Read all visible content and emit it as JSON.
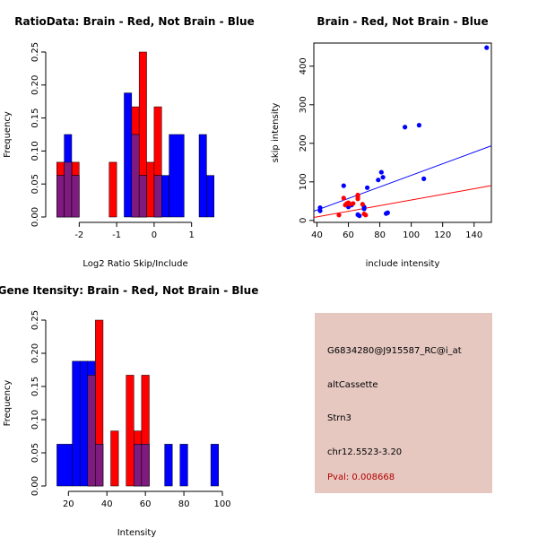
{
  "colors": {
    "red": "#ff0000",
    "blue": "#0000ff",
    "overlap": "#7f1a7f",
    "info_bg": "#e6c8c1",
    "pval": "#b40000"
  },
  "chart_data": [
    {
      "type": "histogram",
      "title": "RatioData: Brain - Red, Not Brain - Blue",
      "xlabel": "Log2 Ratio Skip/Include",
      "ylabel": "Frequency",
      "xlim": [
        -2.75,
        1.75
      ],
      "ylim": [
        0,
        0.25
      ],
      "xticks": [
        -2,
        -1,
        0,
        1
      ],
      "yticks": [
        0.0,
        0.05,
        0.1,
        0.15,
        0.2,
        0.25
      ],
      "series": [
        {
          "name": "Brain",
          "color": "red",
          "bins": [
            {
              "x0": -2.6,
              "x1": -2.2,
              "y": 0.083
            },
            {
              "x0": -2.2,
              "x1": -2.0,
              "y": 0.083
            },
            {
              "x0": -1.2,
              "x1": -1.0,
              "y": 0.083
            },
            {
              "x0": -0.6,
              "x1": -0.4,
              "y": 0.167
            },
            {
              "x0": -0.4,
              "x1": -0.2,
              "y": 0.25
            },
            {
              "x0": -0.2,
              "x1": 0.0,
              "y": 0.083
            },
            {
              "x0": 0.0,
              "x1": 0.2,
              "y": 0.167
            }
          ]
        },
        {
          "name": "Not Brain",
          "color": "blue",
          "bins": [
            {
              "x0": -2.6,
              "x1": -2.4,
              "y": 0.063
            },
            {
              "x0": -2.4,
              "x1": -2.2,
              "y": 0.125
            },
            {
              "x0": -2.2,
              "x1": -2.0,
              "y": 0.063
            },
            {
              "x0": -0.8,
              "x1": -0.6,
              "y": 0.188
            },
            {
              "x0": -0.6,
              "x1": -0.4,
              "y": 0.125
            },
            {
              "x0": -0.4,
              "x1": -0.2,
              "y": 0.063
            },
            {
              "x0": 0.0,
              "x1": 0.2,
              "y": 0.063
            },
            {
              "x0": 0.2,
              "x1": 0.4,
              "y": 0.063
            },
            {
              "x0": 0.4,
              "x1": 0.8,
              "y": 0.125
            },
            {
              "x0": 1.0,
              "x1": 1.2,
              "y": 0.0
            },
            {
              "x0": 1.2,
              "x1": 1.4,
              "y": 0.125
            },
            {
              "x0": 1.4,
              "x1": 1.6,
              "y": 0.063
            }
          ]
        }
      ]
    },
    {
      "type": "scatter",
      "title": "Brain - Red, Not Brain - Blue",
      "xlabel": "include intensity",
      "ylabel": "skip intensity",
      "xlim": [
        38,
        151
      ],
      "ylim": [
        -5,
        460
      ],
      "xticks": [
        40,
        60,
        80,
        100,
        120,
        140
      ],
      "yticks": [
        0,
        100,
        200,
        300,
        400
      ],
      "series": [
        {
          "name": "Not Brain",
          "color": "blue",
          "points": [
            [
              42,
              33
            ],
            [
              42,
              25
            ],
            [
              57,
              90
            ],
            [
              60,
              35
            ],
            [
              62,
              40
            ],
            [
              66,
              15
            ],
            [
              67,
              12
            ],
            [
              70,
              35
            ],
            [
              70,
              30
            ],
            [
              72,
              85
            ],
            [
              79,
              105
            ],
            [
              81,
              125
            ],
            [
              82,
              112
            ],
            [
              84,
              18
            ],
            [
              85,
              20
            ],
            [
              96,
              242
            ],
            [
              105,
              247
            ],
            [
              108,
              108
            ],
            [
              148,
              448
            ]
          ]
        },
        {
          "name": "Brain",
          "color": "red",
          "points": [
            [
              54,
              14
            ],
            [
              57,
              58
            ],
            [
              58,
              40
            ],
            [
              59,
              44
            ],
            [
              60,
              46
            ],
            [
              61,
              42
            ],
            [
              63,
              44
            ],
            [
              66,
              62
            ],
            [
              66,
              66
            ],
            [
              66,
              56
            ],
            [
              69,
              42
            ],
            [
              70,
              17
            ],
            [
              71,
              14
            ]
          ]
        }
      ],
      "lines": [
        {
          "color": "blue",
          "intercept": -33,
          "slope": 1.5
        },
        {
          "color": "red",
          "intercept": -20,
          "slope": 0.73
        }
      ]
    },
    {
      "type": "histogram",
      "title": "Gene Itensity: Brain - Red, Not Brain - Blue",
      "xlabel": "Intensity",
      "ylabel": "Frequency",
      "xlim": [
        11,
        100
      ],
      "ylim": [
        0,
        0.25
      ],
      "xticks": [
        20,
        40,
        60,
        80,
        100
      ],
      "yticks": [
        0.0,
        0.05,
        0.1,
        0.15,
        0.2,
        0.25
      ],
      "series": [
        {
          "name": "Brain",
          "color": "red",
          "bins": [
            {
              "x0": 30,
              "x1": 34,
              "y": 0.167
            },
            {
              "x0": 34,
              "x1": 38,
              "y": 0.25
            },
            {
              "x0": 42,
              "x1": 46,
              "y": 0.083
            },
            {
              "x0": 50,
              "x1": 54,
              "y": 0.167
            },
            {
              "x0": 54,
              "x1": 58,
              "y": 0.083
            },
            {
              "x0": 58,
              "x1": 62,
              "y": 0.167
            }
          ]
        },
        {
          "name": "Not Brain",
          "color": "blue",
          "bins": [
            {
              "x0": 14,
              "x1": 22,
              "y": 0.063
            },
            {
              "x0": 22,
              "x1": 26,
              "y": 0.188
            },
            {
              "x0": 26,
              "x1": 30,
              "y": 0.188
            },
            {
              "x0": 30,
              "x1": 34,
              "y": 0.188
            },
            {
              "x0": 34,
              "x1": 38,
              "y": 0.063
            },
            {
              "x0": 54,
              "x1": 58,
              "y": 0.063
            },
            {
              "x0": 58,
              "x1": 62,
              "y": 0.063
            },
            {
              "x0": 70,
              "x1": 74,
              "y": 0.063
            },
            {
              "x0": 78,
              "x1": 82,
              "y": 0.063
            },
            {
              "x0": 94,
              "x1": 98,
              "y": 0.063
            }
          ]
        }
      ]
    }
  ],
  "info": {
    "probe": "G6834280@J915587_RC@i_at",
    "event_type": "altCassette",
    "gene": "Strn3",
    "location": "chr12.5523-3.20",
    "pval": "Pval: 0.008668"
  }
}
